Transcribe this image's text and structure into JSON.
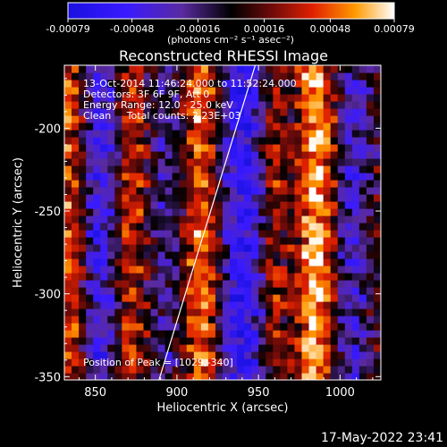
{
  "chart_data": {
    "type": "heatmap",
    "title": "Reconstructed RHESSI Image",
    "xlabel": "Heliocentric X (arcsec)",
    "ylabel": "Heliocentric Y (arcsec)",
    "xlim": [
      831,
      1025
    ],
    "ylim": [
      -352,
      -162
    ],
    "x_ticks": [
      850,
      900,
      950,
      1000
    ],
    "x_tick_labels": [
      "850",
      "900",
      "950",
      "1000"
    ],
    "y_ticks": [
      -200,
      -250,
      -300,
      -350
    ],
    "y_tick_labels": [
      "-200",
      "-250",
      "-300",
      "-350"
    ],
    "colorbar": {
      "min": -0.00079,
      "max": 0.00079,
      "ticks": [
        -0.00079,
        -0.00048,
        -0.00016,
        0.00016,
        0.00048,
        0.00079
      ],
      "tick_labels": [
        "-0.00079",
        "-0.00048",
        "-0.00016",
        "0.00016",
        "0.00048",
        "0.00079"
      ],
      "label": "(photons cm⁻² s⁻¹ asec⁻²)"
    },
    "annotations": [
      "13-Oct-2014 11:46:24.000 to 11:52:24.000",
      "Detectors: 3F 6F 9F, Att 0",
      "Energy Range: 12.0 - 25.0 keV",
      "Clean     Total counts: 2.23E+03"
    ],
    "peak_label": "Position of Peak = [1029,-340]",
    "limb_line": {
      "x": [
        889,
        948
      ],
      "y": [
        -352,
        -162
      ]
    },
    "bands": [
      {
        "x_center": 835,
        "width": 8,
        "strength": 0.55
      },
      {
        "x_center": 853,
        "width": 10,
        "strength": -0.55
      },
      {
        "x_center": 872,
        "width": 9,
        "strength": 0.45
      },
      {
        "x_center": 893,
        "width": 9,
        "strength": -0.25
      },
      {
        "x_center": 915,
        "width": 10,
        "strength": 0.65
      },
      {
        "x_center": 940,
        "width": 12,
        "strength": -0.75
      },
      {
        "x_center": 960,
        "width": 7,
        "strength": 0.35
      },
      {
        "x_center": 985,
        "width": 11,
        "strength": 0.85
      },
      {
        "x_center": 1008,
        "width": 9,
        "strength": -0.45
      }
    ]
  },
  "footer": {
    "timestamp": "17-May-2022 23:41"
  }
}
